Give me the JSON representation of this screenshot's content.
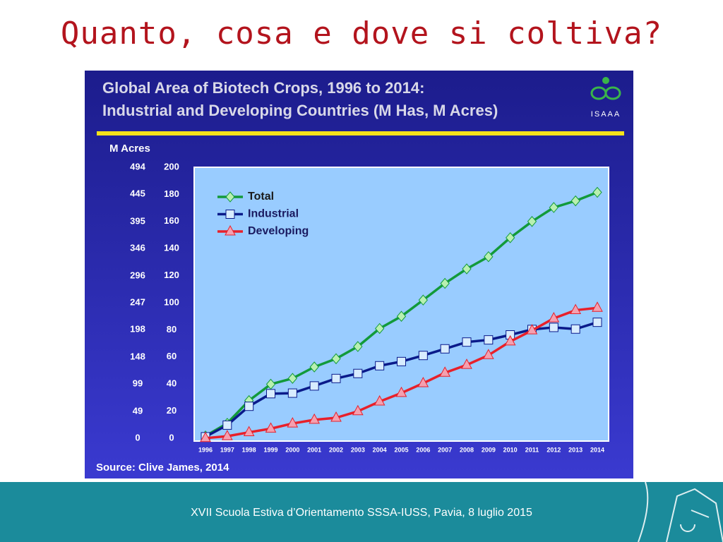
{
  "slide": {
    "title": "Quanto, cosa e dove si coltiva?",
    "footer": "XVII Scuola Estiva d’Orientamento SSSA-IUSS, Pavia, 8 luglio 2015",
    "logo": "ISAAA"
  },
  "chart_data": {
    "type": "line",
    "title": "Global Area of Biotech Crops, 1996 to 2014:",
    "subtitle": "Industrial and Developing Countries (M Has, M Acres)",
    "y2_label": "M Acres",
    "source": "Source: Clive James, 2014",
    "categories": [
      "1996",
      "1997",
      "1998",
      "1999",
      "2000",
      "2001",
      "2002",
      "2003",
      "2004",
      "2005",
      "2006",
      "2007",
      "2008",
      "2009",
      "2010",
      "2011",
      "2012",
      "2013",
      "2014"
    ],
    "series": [
      {
        "name": "Total",
        "color": "#129a3a",
        "marker": "diamond",
        "marker_fill": "#b8f0b0",
        "values": [
          1.7,
          11,
          27.8,
          39.9,
          44.2,
          52.6,
          58.7,
          67.7,
          81,
          90,
          102,
          114.3,
          125,
          134,
          148,
          160,
          170.3,
          175.2,
          181.5
        ]
      },
      {
        "name": "Industrial",
        "color": "#0a1a8a",
        "marker": "square",
        "marker_fill": "#d8ecff",
        "values": [
          1.1,
          9.7,
          23.6,
          32.9,
          33.3,
          38.6,
          44.1,
          47.8,
          53.5,
          56.6,
          61.1,
          66,
          71,
          72.6,
          76.3,
          80.3,
          81.8,
          80.6,
          85.6
        ]
      },
      {
        "name": "Developing",
        "color": "#e8202a",
        "marker": "triangle",
        "marker_fill": "#f4a0b0",
        "values": [
          0.1,
          1.5,
          4.4,
          7.1,
          10.9,
          13.6,
          15.1,
          19.9,
          27.1,
          33.4,
          40.6,
          48.3,
          54.1,
          61.3,
          71.4,
          79.6,
          88.5,
          94.5,
          96.2
        ]
      }
    ],
    "ylim": [
      0,
      200
    ],
    "yticks": [
      0,
      20,
      40,
      60,
      80,
      100,
      120,
      140,
      160,
      180,
      200
    ],
    "y2lim": [
      0,
      494
    ],
    "y2ticks": [
      0,
      49,
      99,
      148,
      198,
      247,
      296,
      346,
      395,
      445,
      494
    ],
    "legend": "upper-left",
    "plot_background": "#99ccff",
    "grid": false
  }
}
